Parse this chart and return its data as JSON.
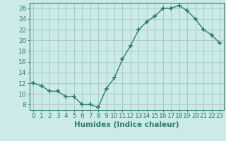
{
  "x": [
    0,
    1,
    2,
    3,
    4,
    5,
    6,
    7,
    8,
    9,
    10,
    11,
    12,
    13,
    14,
    15,
    16,
    17,
    18,
    19,
    20,
    21,
    22,
    23
  ],
  "y": [
    12,
    11.5,
    10.5,
    10.5,
    9.5,
    9.5,
    8,
    8,
    7.5,
    11,
    13,
    16.5,
    19,
    22,
    23.5,
    24.5,
    26,
    26,
    26.5,
    25.5,
    24,
    22,
    21,
    19.5
  ],
  "line_color": "#2e7d6e",
  "marker": "+",
  "bg_color": "#cceaea",
  "grid_color": "#aacece",
  "xlabel": "Humidex (Indice chaleur)",
  "xlim": [
    -0.5,
    23.5
  ],
  "ylim": [
    7,
    27
  ],
  "yticks": [
    8,
    10,
    12,
    14,
    16,
    18,
    20,
    22,
    24,
    26
  ],
  "xticks": [
    0,
    1,
    2,
    3,
    4,
    5,
    6,
    7,
    8,
    9,
    10,
    11,
    12,
    13,
    14,
    15,
    16,
    17,
    18,
    19,
    20,
    21,
    22,
    23
  ],
  "tick_color": "#2e7d6e",
  "spine_color": "#2e7d6e",
  "label_fontsize": 7.5,
  "tick_fontsize": 6.5
}
